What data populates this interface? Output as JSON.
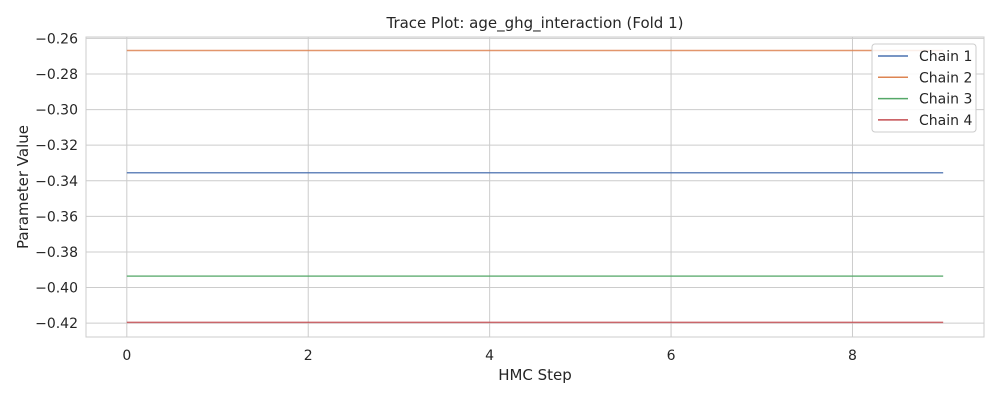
{
  "chart_data": {
    "type": "line",
    "title": "Trace Plot: age_ghg_interaction (Fold 1)",
    "xlabel": "HMC Step",
    "ylabel": "Parameter Value",
    "xlim": [
      -0.45,
      9.45
    ],
    "ylim": [
      -0.4278,
      -0.2592
    ],
    "xticks": [
      0,
      2,
      4,
      6,
      8
    ],
    "yticks": [
      -0.26,
      -0.28,
      -0.3,
      -0.32,
      -0.34,
      -0.36,
      -0.38,
      -0.4,
      -0.42
    ],
    "xtick_labels": [
      "0",
      "2",
      "4",
      "6",
      "8"
    ],
    "ytick_labels": [
      "−0.26",
      "−0.28",
      "−0.30",
      "−0.32",
      "−0.34",
      "−0.36",
      "−0.38",
      "−0.40",
      "−0.42"
    ],
    "grid": true,
    "legend_position": "top-right",
    "x": [
      0,
      1,
      2,
      3,
      4,
      5,
      6,
      7,
      8,
      9
    ],
    "series": [
      {
        "name": "Chain 1",
        "color": "#4c72b0",
        "values": [
          -0.3355,
          -0.3355,
          -0.3355,
          -0.3355,
          -0.3355,
          -0.3355,
          -0.3355,
          -0.3355,
          -0.3355,
          -0.3355
        ]
      },
      {
        "name": "Chain 2",
        "color": "#dd8452",
        "values": [
          -0.2668,
          -0.2668,
          -0.2668,
          -0.2668,
          -0.2668,
          -0.2668,
          -0.2668,
          -0.2668,
          -0.2668,
          -0.2668
        ]
      },
      {
        "name": "Chain 3",
        "color": "#55a868",
        "values": [
          -0.3936,
          -0.3936,
          -0.3936,
          -0.3936,
          -0.3936,
          -0.3936,
          -0.3936,
          -0.3936,
          -0.3936,
          -0.3936
        ]
      },
      {
        "name": "Chain 4",
        "color": "#c44e52",
        "values": [
          -0.4196,
          -0.4196,
          -0.4196,
          -0.4196,
          -0.4196,
          -0.4196,
          -0.4196,
          -0.4196,
          -0.4196,
          -0.4196
        ]
      }
    ]
  }
}
